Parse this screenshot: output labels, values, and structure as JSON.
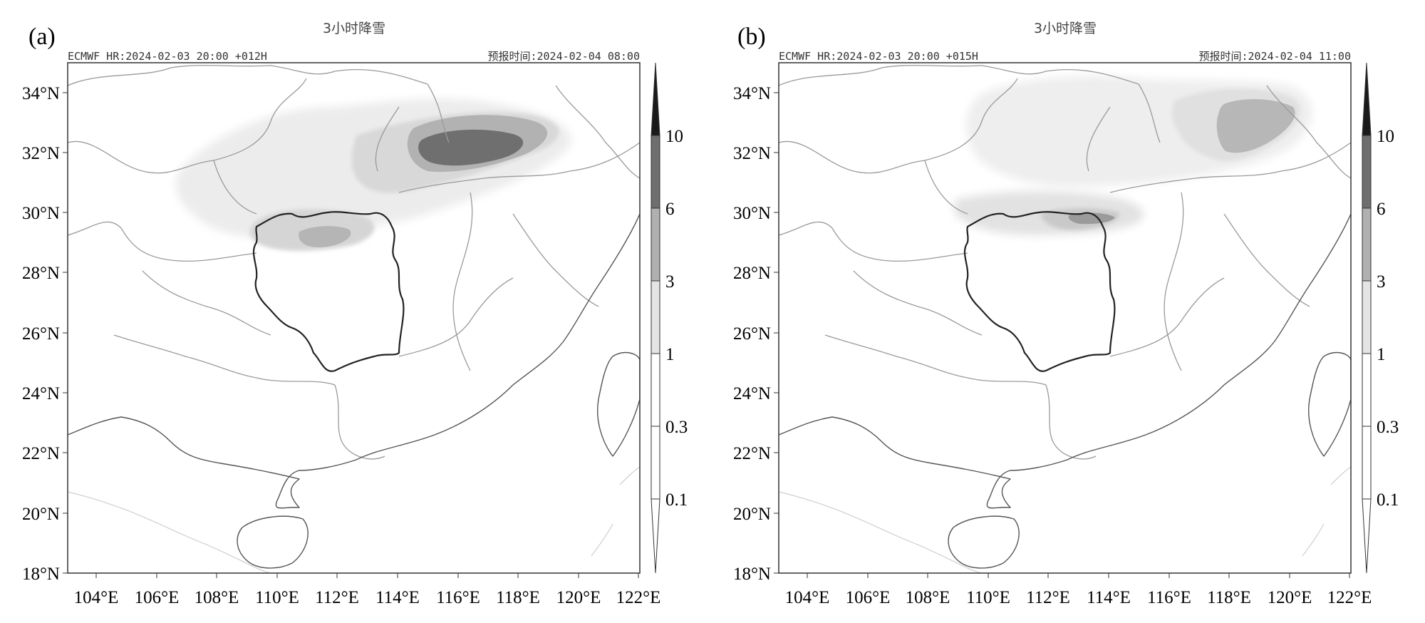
{
  "figure": {
    "panels": [
      {
        "label": "(a)",
        "title": "3小时降雪",
        "model_info": "ECMWF HR:2024-02-03 20:00 +012H",
        "forecast_time": "预报时间:2024-02-04 08:00"
      },
      {
        "label": "(b)",
        "title": "3小时降雪",
        "model_info": "ECMWF HR:2024-02-03 20:00 +015H",
        "forecast_time": "预报时间:2024-02-04 11:00"
      }
    ],
    "lat_ticks": [
      "34°N",
      "32°N",
      "30°N",
      "28°N",
      "26°N",
      "24°N",
      "22°N",
      "20°N",
      "18°N"
    ],
    "lon_ticks": [
      "104°E",
      "106°E",
      "108°E",
      "110°E",
      "112°E",
      "114°E",
      "116°E",
      "118°E",
      "120°E",
      "122°E"
    ],
    "colorbar": {
      "levels": [
        "10",
        "6",
        "3",
        "1",
        "0.3",
        "0.1"
      ],
      "colors": [
        "#1a1a1a",
        "#6e6e6e",
        "#b0b0b0",
        "#e4e4e4",
        "#ffffff",
        "#ffffff",
        "#ffffff"
      ]
    }
  }
}
